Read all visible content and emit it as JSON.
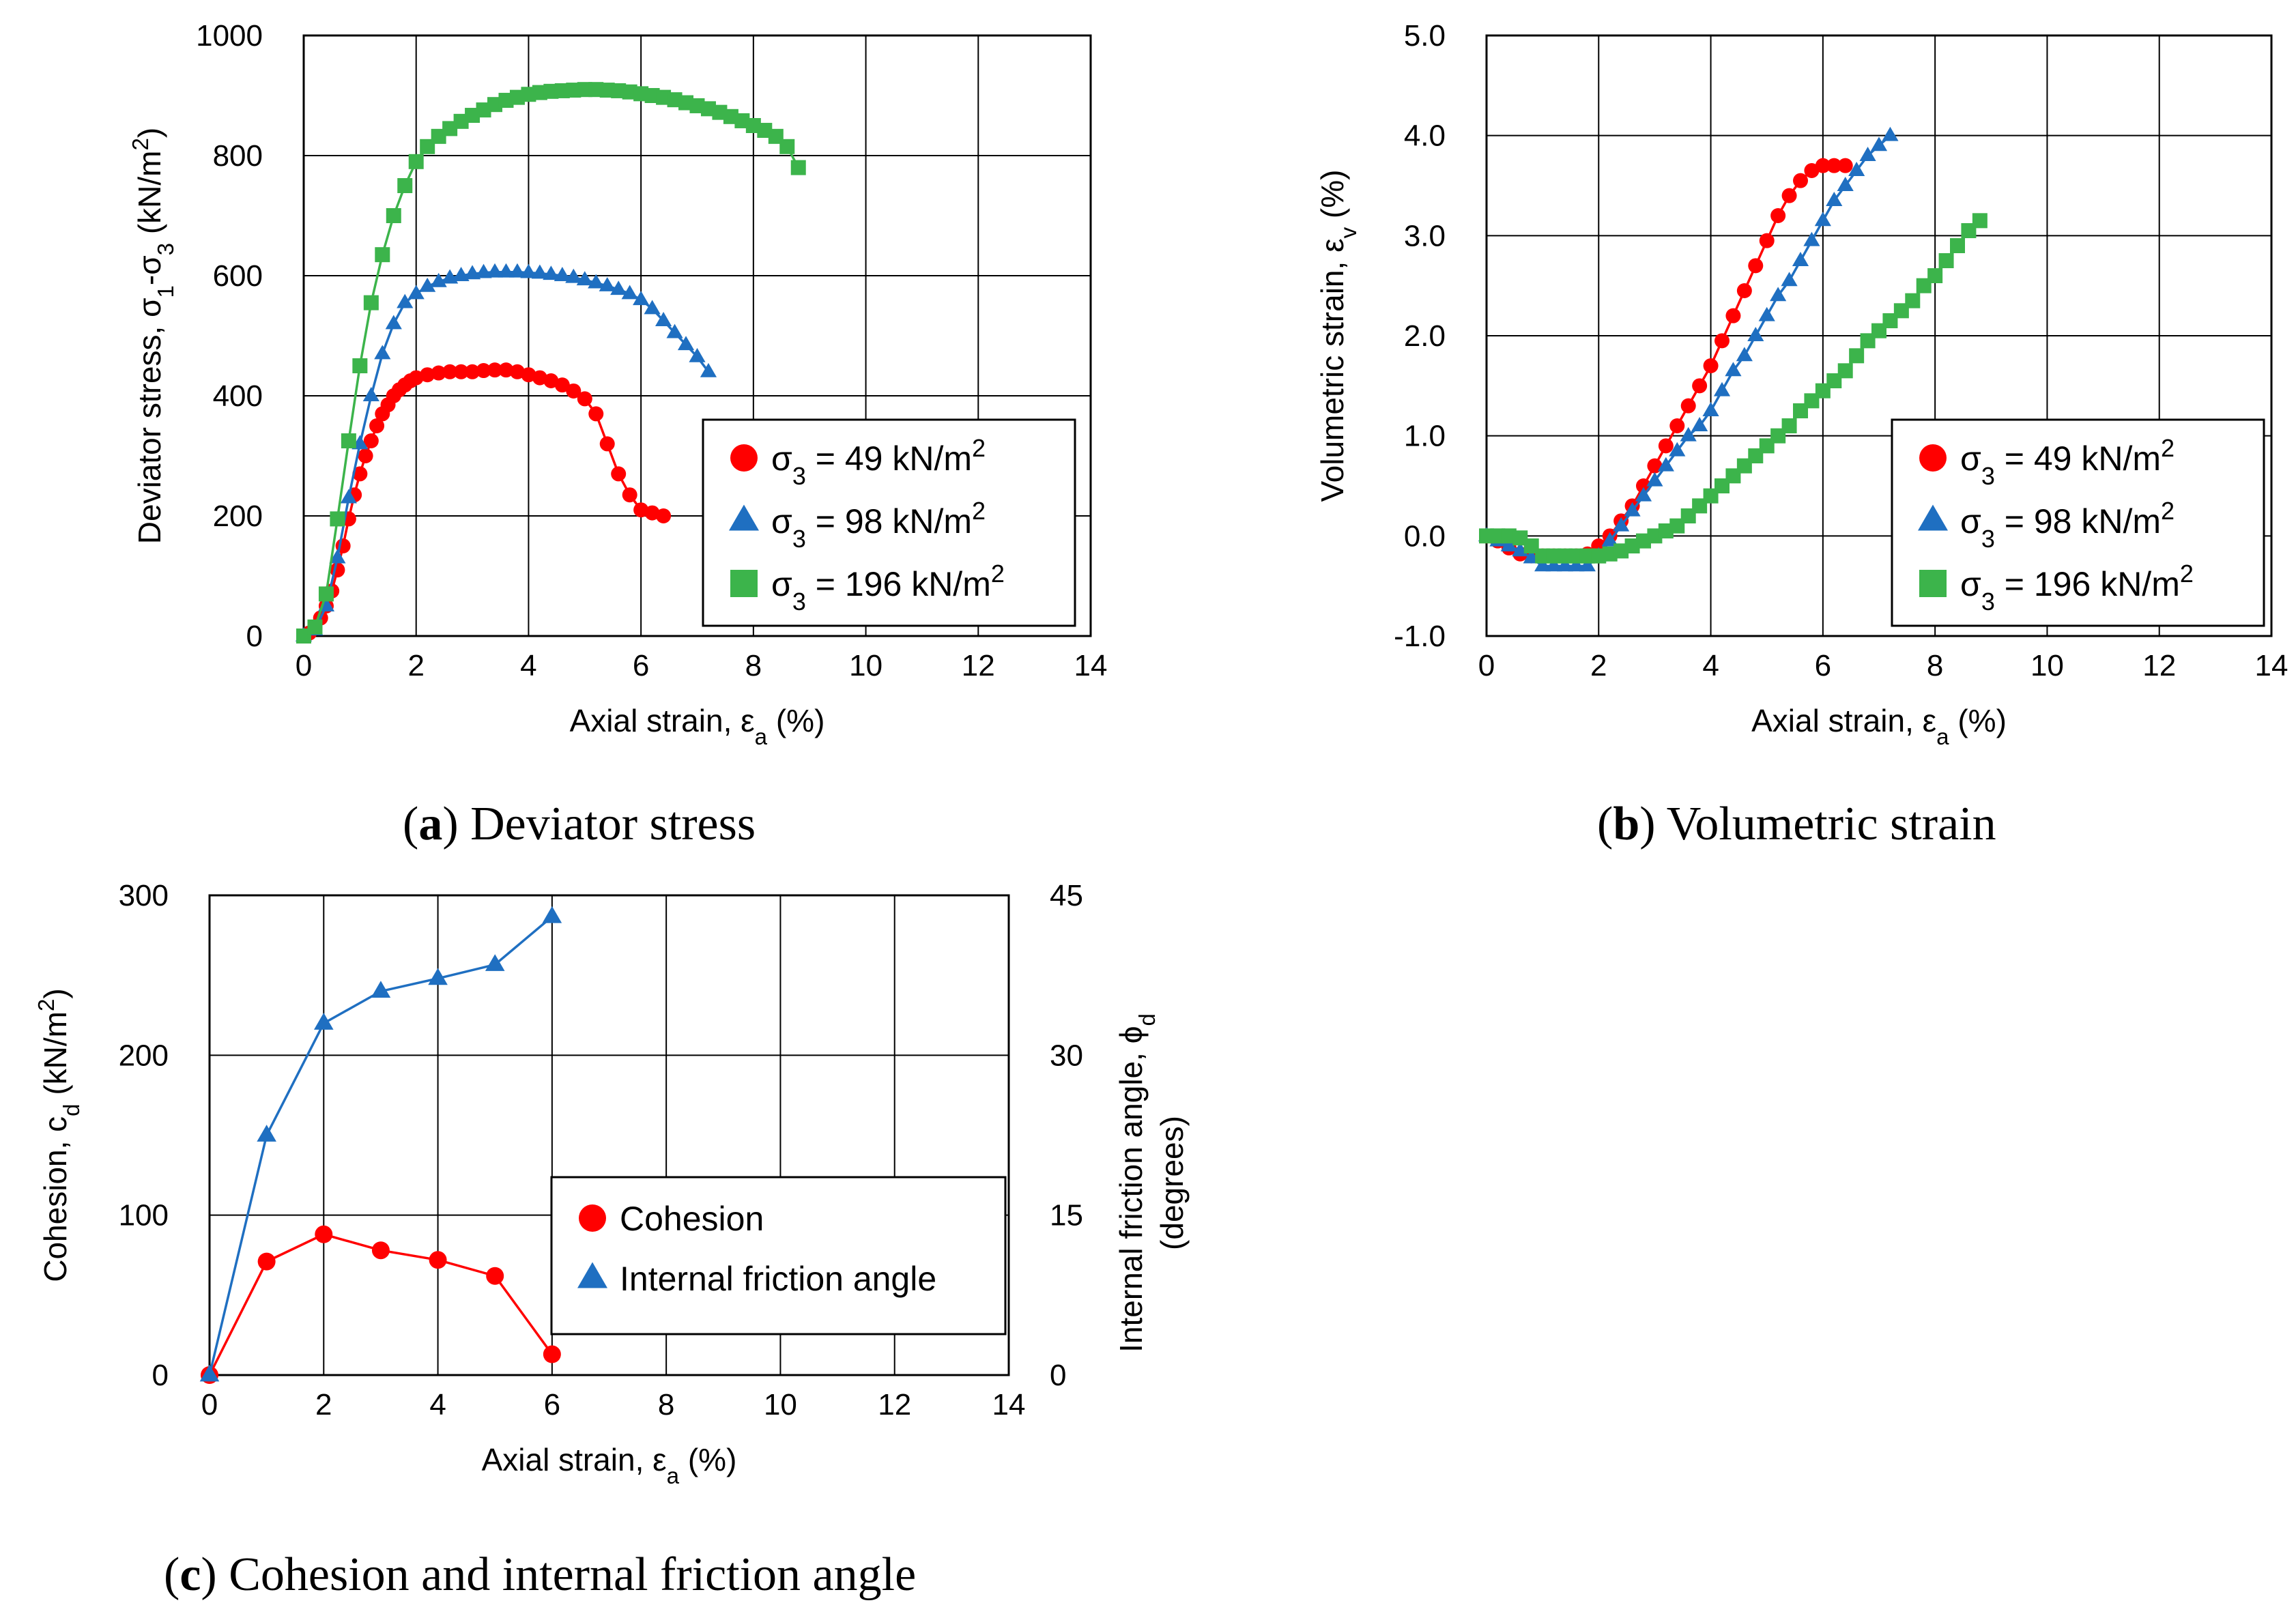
{
  "chart_data": [
    {
      "id": "a",
      "type": "scatter",
      "caption_label": "a",
      "caption_text": "Deviator stress",
      "xlabel": {
        "main": "Axial strain, ε",
        "sub": "a",
        "tail": " (%)"
      },
      "ylabel": {
        "main": "Deviator stress, σ",
        "sub1": "1",
        "mid": "-σ",
        "sub2": "3",
        "tail": " (kN/m",
        "sup": "2",
        "end": ")"
      },
      "xlim": [
        0,
        14
      ],
      "xticks": [
        0,
        2,
        4,
        6,
        8,
        10,
        12,
        14
      ],
      "ylim": [
        0,
        1000
      ],
      "yticks": [
        0,
        200,
        400,
        600,
        800,
        1000
      ],
      "grid": true,
      "legend_position": "lower-right",
      "series": [
        {
          "name": "σ3 = 49 kN/m2",
          "label_main": "σ",
          "label_sub": "3",
          "label_mid": " = 49 kN/m",
          "label_sup": "2",
          "color": "#ff0000",
          "marker": "circle",
          "x": [
            0.0,
            0.1,
            0.2,
            0.3,
            0.4,
            0.5,
            0.6,
            0.7,
            0.8,
            0.9,
            1.0,
            1.1,
            1.2,
            1.3,
            1.4,
            1.5,
            1.6,
            1.7,
            1.8,
            1.9,
            2.0,
            2.2,
            2.4,
            2.6,
            2.8,
            3.0,
            3.2,
            3.4,
            3.6,
            3.8,
            4.0,
            4.2,
            4.4,
            4.6,
            4.8,
            5.0,
            5.2,
            5.4,
            5.6,
            5.8,
            6.0,
            6.2,
            6.4
          ],
          "y": [
            0,
            5,
            15,
            30,
            50,
            75,
            110,
            150,
            195,
            235,
            270,
            300,
            325,
            350,
            370,
            385,
            400,
            410,
            418,
            425,
            430,
            435,
            438,
            440,
            440,
            440,
            442,
            443,
            443,
            440,
            435,
            430,
            425,
            418,
            408,
            395,
            370,
            320,
            270,
            235,
            210,
            205,
            200
          ]
        },
        {
          "name": "σ3 = 98 kN/m2",
          "label_main": "σ",
          "label_sub": "3",
          "label_mid": " = 98 kN/m",
          "label_sup": "2",
          "color": "#1f6fc1",
          "marker": "triangle",
          "x": [
            0.0,
            0.2,
            0.4,
            0.6,
            0.8,
            1.0,
            1.2,
            1.4,
            1.6,
            1.8,
            2.0,
            2.2,
            2.4,
            2.6,
            2.8,
            3.0,
            3.2,
            3.4,
            3.6,
            3.8,
            4.0,
            4.2,
            4.4,
            4.6,
            4.8,
            5.0,
            5.2,
            5.4,
            5.6,
            5.8,
            6.0,
            6.2,
            6.4,
            6.6,
            6.8,
            7.0,
            7.2
          ],
          "y": [
            0,
            10,
            50,
            130,
            230,
            320,
            400,
            470,
            520,
            555,
            570,
            582,
            590,
            596,
            600,
            603,
            605,
            606,
            606,
            606,
            605,
            604,
            602,
            600,
            597,
            593,
            588,
            583,
            577,
            570,
            560,
            545,
            525,
            505,
            485,
            465,
            440
          ]
        },
        {
          "name": "σ3 = 196 kN/m2",
          "label_main": "σ",
          "label_sub": "3",
          "label_mid": " = 196 kN/m",
          "label_sup": "2",
          "color": "#3cb44b",
          "marker": "square",
          "x": [
            0.0,
            0.2,
            0.4,
            0.6,
            0.8,
            1.0,
            1.2,
            1.4,
            1.6,
            1.8,
            2.0,
            2.2,
            2.4,
            2.6,
            2.8,
            3.0,
            3.2,
            3.4,
            3.6,
            3.8,
            4.0,
            4.2,
            4.4,
            4.6,
            4.8,
            5.0,
            5.2,
            5.4,
            5.6,
            5.8,
            6.0,
            6.2,
            6.4,
            6.6,
            6.8,
            7.0,
            7.2,
            7.4,
            7.6,
            7.8,
            8.0,
            8.2,
            8.4,
            8.6,
            8.8
          ],
          "y": [
            0,
            15,
            70,
            195,
            325,
            450,
            555,
            635,
            700,
            750,
            790,
            815,
            832,
            845,
            857,
            867,
            876,
            885,
            892,
            897,
            902,
            905,
            907,
            908,
            909,
            910,
            910,
            909,
            908,
            906,
            903,
            900,
            897,
            893,
            888,
            883,
            878,
            872,
            865,
            858,
            850,
            842,
            832,
            815,
            780
          ]
        }
      ]
    },
    {
      "id": "b",
      "type": "scatter",
      "caption_label": "b",
      "caption_text": "Volumetric strain",
      "xlabel": {
        "main": "Axial strain, ε",
        "sub": "a",
        "tail": " (%)"
      },
      "ylabel": {
        "main": "Volumetric strain, ε",
        "sub": "v",
        "tail": " (%)"
      },
      "xlim": [
        0,
        14
      ],
      "xticks": [
        0,
        2,
        4,
        6,
        8,
        10,
        12,
        14
      ],
      "ylim": [
        -1.0,
        5.0
      ],
      "yticks": [
        -1.0,
        0.0,
        1.0,
        2.0,
        3.0,
        4.0,
        5.0
      ],
      "ytick_labels": [
        "-1.0",
        "0.0",
        "1.0",
        "2.0",
        "3.0",
        "4.0",
        "5.0"
      ],
      "grid": true,
      "legend_position": "lower-right",
      "series": [
        {
          "name": "σ3 = 49 kN/m2",
          "label_main": "σ",
          "label_sub": "3",
          "label_mid": " = 49 kN/m",
          "label_sup": "2",
          "color": "#ff0000",
          "marker": "circle",
          "x": [
            0.0,
            0.2,
            0.4,
            0.6,
            0.8,
            1.0,
            1.2,
            1.4,
            1.6,
            1.8,
            2.0,
            2.2,
            2.4,
            2.6,
            2.8,
            3.0,
            3.2,
            3.4,
            3.6,
            3.8,
            4.0,
            4.2,
            4.4,
            4.6,
            4.8,
            5.0,
            5.2,
            5.4,
            5.6,
            5.8,
            6.0,
            6.2,
            6.4
          ],
          "y": [
            0.0,
            -0.05,
            -0.12,
            -0.18,
            -0.2,
            -0.2,
            -0.2,
            -0.2,
            -0.2,
            -0.18,
            -0.1,
            0.0,
            0.15,
            0.3,
            0.5,
            0.7,
            0.9,
            1.1,
            1.3,
            1.5,
            1.7,
            1.95,
            2.2,
            2.45,
            2.7,
            2.95,
            3.2,
            3.4,
            3.55,
            3.65,
            3.7,
            3.7,
            3.7
          ]
        },
        {
          "name": "σ3 = 98 kN/m2",
          "label_main": "σ",
          "label_sub": "3",
          "label_mid": " = 98 kN/m",
          "label_sup": "2",
          "color": "#1f6fc1",
          "marker": "triangle",
          "x": [
            0.0,
            0.2,
            0.4,
            0.6,
            0.8,
            1.0,
            1.2,
            1.4,
            1.6,
            1.8,
            2.0,
            2.2,
            2.4,
            2.6,
            2.8,
            3.0,
            3.2,
            3.4,
            3.6,
            3.8,
            4.0,
            4.2,
            4.4,
            4.6,
            4.8,
            5.0,
            5.2,
            5.4,
            5.6,
            5.8,
            6.0,
            6.2,
            6.4,
            6.6,
            6.8,
            7.0,
            7.2
          ],
          "y": [
            0.0,
            -0.05,
            -0.1,
            -0.15,
            -0.22,
            -0.3,
            -0.3,
            -0.3,
            -0.3,
            -0.3,
            -0.2,
            -0.05,
            0.1,
            0.25,
            0.4,
            0.55,
            0.7,
            0.85,
            1.0,
            1.1,
            1.25,
            1.45,
            1.65,
            1.8,
            2.0,
            2.2,
            2.4,
            2.55,
            2.75,
            2.95,
            3.15,
            3.35,
            3.5,
            3.65,
            3.8,
            3.9,
            4.0
          ]
        },
        {
          "name": "σ3 = 196 kN/m2",
          "label_main": "σ",
          "label_sub": "3",
          "label_mid": " = 196 kN/m",
          "label_sup": "2",
          "color": "#3cb44b",
          "marker": "square",
          "x": [
            0.0,
            0.2,
            0.4,
            0.6,
            0.8,
            1.0,
            1.2,
            1.4,
            1.6,
            1.8,
            2.0,
            2.2,
            2.4,
            2.6,
            2.8,
            3.0,
            3.2,
            3.4,
            3.6,
            3.8,
            4.0,
            4.2,
            4.4,
            4.6,
            4.8,
            5.0,
            5.2,
            5.4,
            5.6,
            5.8,
            6.0,
            6.2,
            6.4,
            6.6,
            6.8,
            7.0,
            7.2,
            7.4,
            7.6,
            7.8,
            8.0,
            8.2,
            8.4,
            8.6,
            8.8
          ],
          "y": [
            0.0,
            0.0,
            0.0,
            -0.02,
            -0.1,
            -0.2,
            -0.2,
            -0.2,
            -0.2,
            -0.2,
            -0.2,
            -0.18,
            -0.15,
            -0.1,
            -0.05,
            0.0,
            0.05,
            0.1,
            0.2,
            0.3,
            0.4,
            0.5,
            0.6,
            0.7,
            0.8,
            0.9,
            1.0,
            1.1,
            1.25,
            1.35,
            1.45,
            1.55,
            1.65,
            1.8,
            1.95,
            2.05,
            2.15,
            2.25,
            2.35,
            2.5,
            2.6,
            2.75,
            2.9,
            3.05,
            3.15
          ]
        }
      ]
    },
    {
      "id": "c",
      "type": "line",
      "caption_label": "c",
      "caption_text": "Cohesion and internal friction angle",
      "xlabel": {
        "main": "Axial strain, ε",
        "sub": "a",
        "tail": " (%)"
      },
      "ylabel": {
        "main": "Cohesion, c",
        "sub": "d",
        "tail": " (kN/m",
        "sup": "2",
        "end": ")"
      },
      "y2label": {
        "line1_main": "Internal friction angle, ϕ",
        "line1_sub": "d",
        "line2": "(degrees)"
      },
      "xlim": [
        0,
        14
      ],
      "xticks": [
        0,
        2,
        4,
        6,
        8,
        10,
        12,
        14
      ],
      "ylim": [
        0,
        300
      ],
      "yticks": [
        0,
        100,
        200,
        300
      ],
      "y2lim": [
        0,
        45
      ],
      "y2ticks": [
        0,
        15,
        30,
        45
      ],
      "grid": true,
      "legend_position": "center-right",
      "series": [
        {
          "name": "Cohesion",
          "axis": "left",
          "color": "#ff0000",
          "marker": "circle",
          "x": [
            0,
            1,
            2,
            3,
            4,
            5,
            6
          ],
          "y": [
            0,
            71,
            88,
            78,
            72,
            62,
            13
          ]
        },
        {
          "name": "Internal friction angle",
          "axis": "right",
          "color": "#1f6fc1",
          "marker": "triangle",
          "x": [
            0,
            1,
            2,
            3,
            4,
            5,
            6
          ],
          "y": [
            0,
            22.5,
            33,
            36,
            37.2,
            38.5,
            43
          ]
        }
      ]
    }
  ]
}
